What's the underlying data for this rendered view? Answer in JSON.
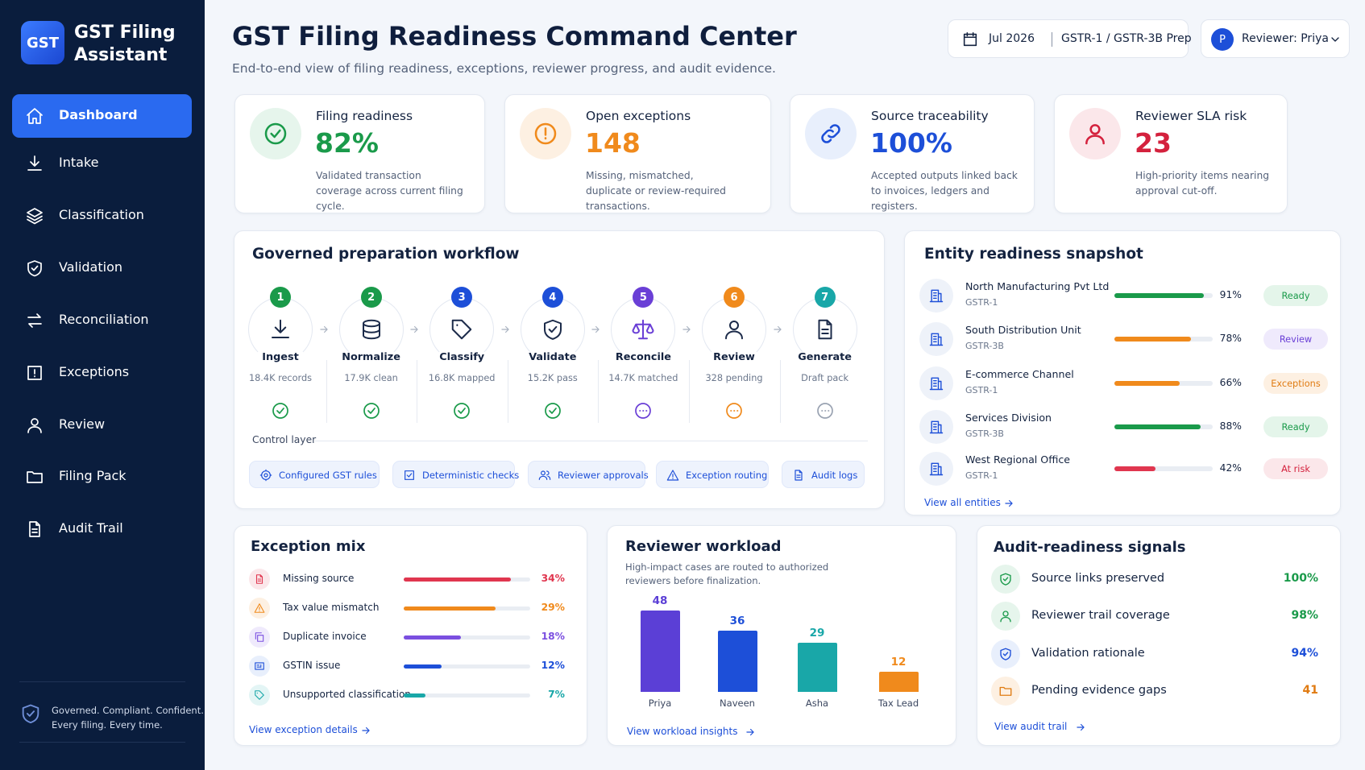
{
  "sidebar": {
    "logo": "GST",
    "title": "GST Filing Assistant",
    "nav": [
      "Dashboard",
      "Intake",
      "Classification",
      "Validation",
      "Reconciliation",
      "Exceptions",
      "Review",
      "Filing Pack",
      "Audit Trail"
    ],
    "footer": [
      "Governed. Compliant. Confident.",
      "Every filing. Every time."
    ]
  },
  "header": {
    "title": "GST Filing Readiness Command Center",
    "subtitle": "End-to-end view of filing readiness, exceptions, reviewer progress, and audit evidence.",
    "period": "Jul 2026",
    "filing": "GSTR-1 / GSTR-3B Prep",
    "avatar": "P",
    "reviewer": "Reviewer: Priya"
  },
  "kpis": [
    {
      "label": "Filing readiness",
      "value": "82%",
      "note": "Validated transaction coverage across current filing cycle.",
      "color": "#1a9a4a",
      "tint": "#e6f5ec"
    },
    {
      "label": "Open exceptions",
      "value": "148",
      "note": "Missing, mismatched, duplicate or review-required transactions.",
      "color": "#f08a1c",
      "tint": "#fdf0e2"
    },
    {
      "label": "Source traceability",
      "value": "100%",
      "note": "Accepted outputs linked back to invoices, ledgers and registers.",
      "color": "#1d4fd8",
      "tint": "#e8effc"
    },
    {
      "label": "Reviewer SLA risk",
      "value": "23",
      "note": "High-priority items nearing approval cut-off.",
      "color": "#d4213d",
      "tint": "#fbe7ea"
    }
  ],
  "workflow": {
    "title": "Governed preparation workflow",
    "steps": [
      {
        "num": "1",
        "name": "Ingest",
        "stat": "18.4K records",
        "color": "#1a9a4a",
        "status_color": "#1a9a4a"
      },
      {
        "num": "2",
        "name": "Normalize",
        "stat": "17.9K clean",
        "color": "#1a9a4a",
        "status_color": "#1a9a4a"
      },
      {
        "num": "3",
        "name": "Classify",
        "stat": "16.8K mapped",
        "color": "#1d4fd8",
        "status_color": "#1a9a4a"
      },
      {
        "num": "4",
        "name": "Validate",
        "stat": "15.2K pass",
        "color": "#1d4fd8",
        "status_color": "#1a9a4a"
      },
      {
        "num": "5",
        "name": "Reconcile",
        "stat": "14.7K matched",
        "color": "#6a3fd6",
        "status_color": "#6a3fd6"
      },
      {
        "num": "6",
        "name": "Review",
        "stat": "328 pending",
        "color": "#f08a1c",
        "status_color": "#f08a1c"
      },
      {
        "num": "7",
        "name": "Generate",
        "stat": "Draft pack",
        "color": "#19a7a8",
        "status_color": "#9aa3b2"
      }
    ],
    "control_label": "Control layer",
    "controls": [
      "Configured GST rules",
      "Deterministic checks",
      "Reviewer approvals",
      "Exception routing",
      "Audit logs"
    ]
  },
  "entities": {
    "title": "Entity readiness snapshot",
    "rows": [
      {
        "name": "North Manufacturing Pvt Ltd",
        "form": "GSTR-1",
        "value": 91,
        "value_label": "91%",
        "status": "Ready",
        "color": "#1a9a4a",
        "status_color": "#1a9a4a",
        "status_bg": "#e4f5ea"
      },
      {
        "name": "South Distribution Unit",
        "form": "GSTR-3B",
        "value": 78,
        "value_label": "78%",
        "status": "Review",
        "color": "#f08a1c",
        "status_color": "#6a3fd6",
        "status_bg": "#efeafc"
      },
      {
        "name": "E-commerce Channel",
        "form": "GSTR-1",
        "value": 66,
        "value_label": "66%",
        "status": "Exceptions",
        "color": "#f08a1c",
        "status_color": "#e07b12",
        "status_bg": "#fdf0e2"
      },
      {
        "name": "Services Division",
        "form": "GSTR-3B",
        "value": 88,
        "value_label": "88%",
        "status": "Ready",
        "color": "#1a9a4a",
        "status_color": "#1a9a4a",
        "status_bg": "#e4f5ea"
      },
      {
        "name": "West Regional Office",
        "form": "GSTR-1",
        "value": 42,
        "value_label": "42%",
        "status": "At risk",
        "color": "#e0364f",
        "status_color": "#d4213d",
        "status_bg": "#fbe7ea"
      }
    ],
    "link": "View all entities"
  },
  "exceptions": {
    "title": "Exception mix",
    "rows": [
      {
        "name": "Missing source",
        "value": 34,
        "value_label": "34%",
        "color": "#e0364f"
      },
      {
        "name": "Tax value mismatch",
        "value": 29,
        "value_label": "29%",
        "color": "#f08a1c"
      },
      {
        "name": "Duplicate invoice",
        "value": 18,
        "value_label": "18%",
        "color": "#7b4fe0"
      },
      {
        "name": "GSTIN issue",
        "value": 12,
        "value_label": "12%",
        "color": "#1d4fd8"
      },
      {
        "name": "Unsupported classification",
        "value": 7,
        "value_label": "7%",
        "color": "#19a7a8"
      }
    ],
    "link": "View exception details"
  },
  "workload": {
    "type": "bar",
    "title": "Reviewer workload",
    "subtitle": "High-impact cases are routed to authorized reviewers before finalization.",
    "categories": [
      "Priya",
      "Naveen",
      "Asha",
      "Tax Lead"
    ],
    "values": [
      48,
      36,
      29,
      12
    ],
    "colors": [
      "#5b3fd6",
      "#1d4fd8",
      "#19a7a8",
      "#f08a1c"
    ],
    "link": "View workload insights"
  },
  "audit": {
    "title": "Audit-readiness signals",
    "rows": [
      {
        "name": "Source links preserved",
        "value": "100%",
        "color": "#1a9a4a",
        "tint": "#e6f5ec"
      },
      {
        "name": "Reviewer trail coverage",
        "value": "98%",
        "color": "#1a9a4a",
        "tint": "#e6f5ec"
      },
      {
        "name": "Validation rationale",
        "value": "94%",
        "color": "#1d4fd8",
        "tint": "#e8effc"
      },
      {
        "name": "Pending evidence gaps",
        "value": "41",
        "color": "#e07b12",
        "tint": "#fdf0e2"
      }
    ],
    "link": "View audit trail"
  }
}
